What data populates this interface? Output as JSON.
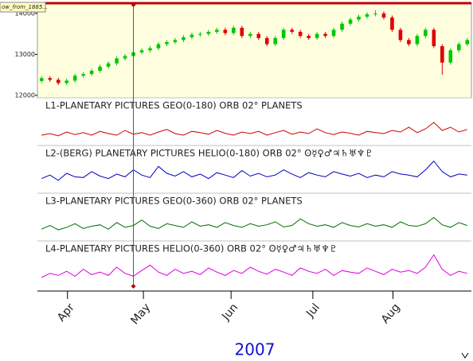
{
  "chart_data": [
    {
      "type": "candlestick",
      "label_box": "ow_from_1885...",
      "background": "#ffffe0",
      "up_color": "#00c800",
      "down_color": "#e00000",
      "x": [
        0,
        1,
        2,
        3,
        4,
        5,
        6,
        7,
        8,
        9,
        10,
        11,
        12,
        13,
        14,
        15,
        16,
        17,
        18,
        19,
        20,
        21,
        22,
        23,
        24,
        25,
        26,
        27,
        28,
        29,
        30,
        31,
        32,
        33,
        34,
        35,
        36,
        37,
        38,
        39,
        40,
        41,
        42,
        43,
        44,
        45,
        46,
        47,
        48,
        49,
        50,
        51
      ],
      "open": [
        12350,
        12420,
        12380,
        12300,
        12360,
        12480,
        12520,
        12600,
        12700,
        12780,
        12900,
        12960,
        13050,
        13100,
        13150,
        13250,
        13300,
        13350,
        13420,
        13480,
        13500,
        13550,
        13600,
        13520,
        13650,
        13450,
        13500,
        13400,
        13250,
        13400,
        13600,
        13550,
        13450,
        13400,
        13500,
        13450,
        13600,
        13750,
        13850,
        13920,
        13980,
        14000,
        13900,
        13600,
        13350,
        13250,
        13450,
        13600,
        13200,
        12800,
        13100,
        13250
      ],
      "high": [
        12470,
        12470,
        12430,
        12410,
        12530,
        12570,
        12650,
        12750,
        12830,
        12950,
        13010,
        13100,
        13150,
        13200,
        13300,
        13350,
        13400,
        13470,
        13530,
        13550,
        13600,
        13650,
        13650,
        13700,
        13700,
        13550,
        13550,
        13450,
        13450,
        13650,
        13650,
        13600,
        13500,
        13550,
        13550,
        13650,
        13800,
        13900,
        13970,
        14030,
        14080,
        14050,
        13950,
        13650,
        13400,
        13500,
        13650,
        13650,
        13250,
        13150,
        13300,
        13400
      ],
      "low": [
        12300,
        12330,
        12250,
        12250,
        12310,
        12430,
        12470,
        12550,
        12650,
        12730,
        12850,
        12910,
        13000,
        13050,
        13100,
        13200,
        13250,
        13300,
        13370,
        13430,
        13450,
        13500,
        13470,
        13470,
        13400,
        13400,
        13350,
        13200,
        13200,
        13350,
        13500,
        13400,
        13350,
        13350,
        13400,
        13400,
        13550,
        13700,
        13800,
        13870,
        13930,
        13850,
        13550,
        13300,
        13200,
        13200,
        13400,
        13150,
        12500,
        12750,
        13050,
        13200
      ],
      "close": [
        12420,
        12380,
        12300,
        12360,
        12480,
        12520,
        12600,
        12700,
        12780,
        12900,
        12960,
        13050,
        13100,
        13150,
        13250,
        13300,
        13350,
        13420,
        13480,
        13500,
        13550,
        13600,
        13520,
        13650,
        13450,
        13500,
        13400,
        13250,
        13400,
        13600,
        13550,
        13450,
        13400,
        13500,
        13450,
        13600,
        13750,
        13850,
        13920,
        13980,
        14000,
        13900,
        13600,
        13350,
        13250,
        13450,
        13600,
        13200,
        12800,
        13100,
        13250,
        13350
      ],
      "xlim": [
        -0.5,
        51.5
      ],
      "ylim": [
        11940,
        14250
      ],
      "yticks": [
        12000,
        13000,
        14000
      ],
      "cursor_x": 11
    },
    {
      "type": "line",
      "title": "L1-PLANETARY PICTURES GEO(0-180) ORB 02°   PLANETS",
      "ylim": [
        0,
        100
      ],
      "series": [
        {
          "color": "#d00000",
          "values": [
            30,
            35,
            28,
            40,
            32,
            38,
            30,
            42,
            35,
            30,
            45,
            33,
            38,
            30,
            40,
            48,
            35,
            30,
            42,
            38,
            33,
            45,
            36,
            30,
            40,
            35,
            42,
            30,
            38,
            45,
            33,
            40,
            35,
            50,
            38,
            32,
            40,
            36,
            30,
            42,
            38,
            35,
            45,
            40,
            55,
            38,
            50,
            70,
            45,
            55,
            40,
            48
          ]
        }
      ]
    },
    {
      "type": "line",
      "title": "L2-(BERG) PLANETARY PICTURES HELIO(0-180) ORB 02°   ʘ☿♀♂♃♄♅♆♇",
      "ylim": [
        0,
        100
      ],
      "series": [
        {
          "color": "#0000c0",
          "values": [
            35,
            45,
            30,
            50,
            40,
            38,
            55,
            42,
            35,
            48,
            40,
            60,
            45,
            38,
            70,
            50,
            42,
            55,
            40,
            48,
            35,
            52,
            45,
            38,
            58,
            42,
            50,
            40,
            45,
            60,
            48,
            38,
            52,
            45,
            40,
            55,
            48,
            42,
            50,
            38,
            45,
            40,
            55,
            48,
            45,
            40,
            60,
            85,
            55,
            40,
            48,
            45
          ]
        }
      ]
    },
    {
      "type": "line",
      "title": "L3-PLANETARY PICTURES GEO(0-360) ORB 02°   PLANETS",
      "ylim": [
        0,
        100
      ],
      "series": [
        {
          "color": "#007000",
          "values": [
            30,
            40,
            28,
            35,
            45,
            32,
            38,
            42,
            30,
            48,
            35,
            40,
            55,
            38,
            32,
            45,
            40,
            35,
            50,
            38,
            42,
            35,
            48,
            40,
            35,
            45,
            38,
            42,
            50,
            36,
            40,
            58,
            45,
            38,
            42,
            35,
            48,
            40,
            36,
            45,
            38,
            42,
            35,
            50,
            40,
            38,
            45,
            62,
            42,
            35,
            48,
            40
          ]
        }
      ]
    },
    {
      "type": "line",
      "title": "L4-PLANETARY PICTURES HELIO(0-360) ORB 02°   ʘ☿♀♂♃♄♅♆♇",
      "ylim": [
        0,
        100
      ],
      "series": [
        {
          "color": "#e000e0",
          "values": [
            25,
            35,
            30,
            40,
            28,
            45,
            32,
            38,
            30,
            50,
            35,
            28,
            42,
            55,
            38,
            30,
            45,
            35,
            40,
            32,
            48,
            38,
            30,
            42,
            35,
            50,
            40,
            33,
            45,
            38,
            30,
            48,
            40,
            35,
            45,
            30,
            42,
            38,
            35,
            48,
            40,
            32,
            45,
            38,
            42,
            35,
            50,
            80,
            45,
            30,
            40,
            35
          ]
        }
      ],
      "xticks": [
        {
          "value": 3.1,
          "label": "Apr"
        },
        {
          "value": 12.2,
          "label": "May"
        },
        {
          "value": 22.7,
          "label": "Jun"
        },
        {
          "value": 32.5,
          "label": "Jul"
        },
        {
          "value": 42.1,
          "label": "Aug"
        }
      ],
      "xlabel": "2007"
    }
  ]
}
